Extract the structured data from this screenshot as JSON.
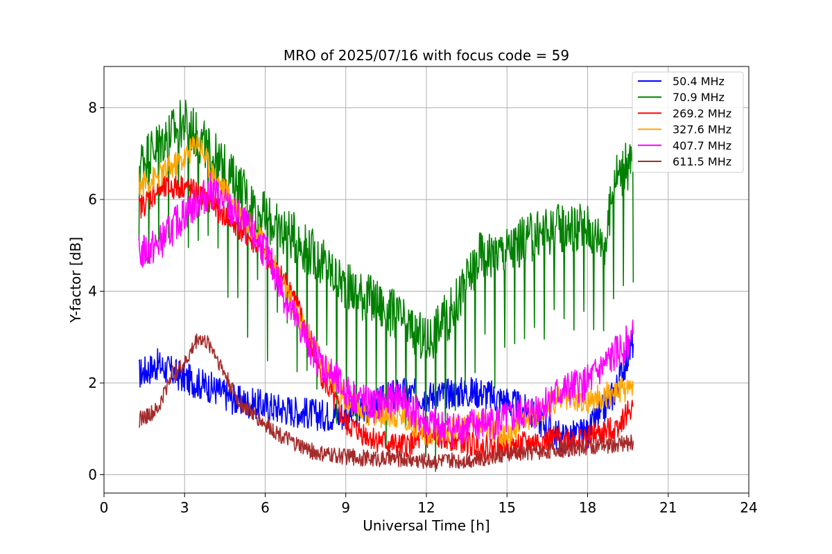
{
  "chart_data": {
    "type": "line",
    "title": "MRO of 2025/07/16 with focus code = 59",
    "xlabel": "Universal Time [h]",
    "ylabel": "Y-factor [dB]",
    "xlim": [
      0,
      24
    ],
    "ylim": [
      -0.4,
      8.9
    ],
    "xticks": [
      0,
      3,
      6,
      9,
      12,
      15,
      18,
      21,
      24
    ],
    "yticks": [
      0,
      2,
      4,
      6,
      8
    ],
    "grid": true,
    "legend_position": "top-right",
    "series": [
      {
        "name": " 50.4 MHz",
        "color": "#0000ff",
        "x": [
          1.3,
          2.0,
          3.0,
          4.0,
          5.0,
          6.0,
          7.0,
          8.0,
          9.0,
          10.0,
          11.0,
          12.0,
          13.0,
          14.0,
          15.0,
          16.0,
          16.6,
          17.0,
          18.0,
          19.0,
          19.7
        ],
        "y": [
          2.2,
          2.4,
          2.1,
          1.9,
          1.6,
          1.5,
          1.4,
          1.3,
          1.3,
          1.5,
          1.8,
          1.7,
          1.8,
          1.8,
          1.6,
          1.3,
          1.0,
          0.8,
          0.9,
          1.8,
          2.9
        ]
      },
      {
        "name": " 70.9 MHz",
        "color": "#008000",
        "x": [
          1.3,
          2.0,
          3.0,
          4.0,
          5.0,
          6.0,
          7.0,
          8.0,
          9.0,
          10.0,
          11.0,
          12.0,
          13.0,
          14.0,
          15.0,
          16.0,
          17.0,
          18.0,
          18.7,
          19.0,
          19.7
        ],
        "y": [
          6.8,
          7.2,
          7.7,
          7.0,
          6.3,
          5.6,
          5.2,
          4.7,
          4.1,
          3.8,
          3.4,
          2.9,
          3.6,
          4.8,
          4.9,
          5.2,
          5.4,
          5.4,
          5.1,
          6.5,
          6.8
        ]
      },
      {
        "name": "269.2 MHz",
        "color": "#ff0000",
        "x": [
          1.3,
          2.0,
          3.0,
          4.0,
          5.0,
          6.0,
          7.0,
          8.0,
          9.0,
          10.0,
          11.0,
          12.0,
          13.0,
          14.0,
          15.0,
          16.0,
          17.0,
          18.0,
          19.0,
          19.7
        ],
        "y": [
          5.8,
          6.2,
          6.3,
          5.9,
          5.4,
          4.8,
          4.0,
          2.3,
          1.1,
          0.8,
          0.6,
          0.8,
          0.8,
          0.6,
          0.6,
          0.7,
          0.8,
          0.8,
          1.0,
          1.5
        ]
      },
      {
        "name": "327.6 MHz",
        "color": "#ffa500",
        "x": [
          1.3,
          2.0,
          3.0,
          3.5,
          4.0,
          5.0,
          6.0,
          7.0,
          8.0,
          9.0,
          10.0,
          11.0,
          12.0,
          13.0,
          14.0,
          15.0,
          16.0,
          17.0,
          18.0,
          19.0,
          19.7
        ],
        "y": [
          6.3,
          6.5,
          6.9,
          7.3,
          6.6,
          5.8,
          5.0,
          3.7,
          2.6,
          1.6,
          1.3,
          1.3,
          0.9,
          1.0,
          1.2,
          0.8,
          1.3,
          1.7,
          1.6,
          1.8,
          1.9
        ]
      },
      {
        "name": "407.7 MHz",
        "color": "#ff00ff",
        "x": [
          1.3,
          2.0,
          3.0,
          4.0,
          5.0,
          6.0,
          7.0,
          8.0,
          9.0,
          10.0,
          11.0,
          12.0,
          13.0,
          14.0,
          15.0,
          16.0,
          17.0,
          18.0,
          19.0,
          19.7
        ],
        "y": [
          4.8,
          5.0,
          5.7,
          6.2,
          5.6,
          4.9,
          3.5,
          2.5,
          1.8,
          1.5,
          1.7,
          1.1,
          1.0,
          1.1,
          1.2,
          1.4,
          1.8,
          2.0,
          2.6,
          3.0
        ]
      },
      {
        "name": "611.5 MHz",
        "color": "#a52a2a",
        "x": [
          1.3,
          2.0,
          2.5,
          3.0,
          3.5,
          4.0,
          5.0,
          6.0,
          7.0,
          8.0,
          9.0,
          10.0,
          11.0,
          12.0,
          13.0,
          14.0,
          15.0,
          16.0,
          17.0,
          18.0,
          19.0,
          19.7
        ],
        "y": [
          1.2,
          1.4,
          2.2,
          2.4,
          3.0,
          2.8,
          1.6,
          1.1,
          0.7,
          0.45,
          0.4,
          0.35,
          0.35,
          0.3,
          0.3,
          0.35,
          0.45,
          0.5,
          0.55,
          0.6,
          0.65,
          0.7
        ]
      }
    ]
  }
}
